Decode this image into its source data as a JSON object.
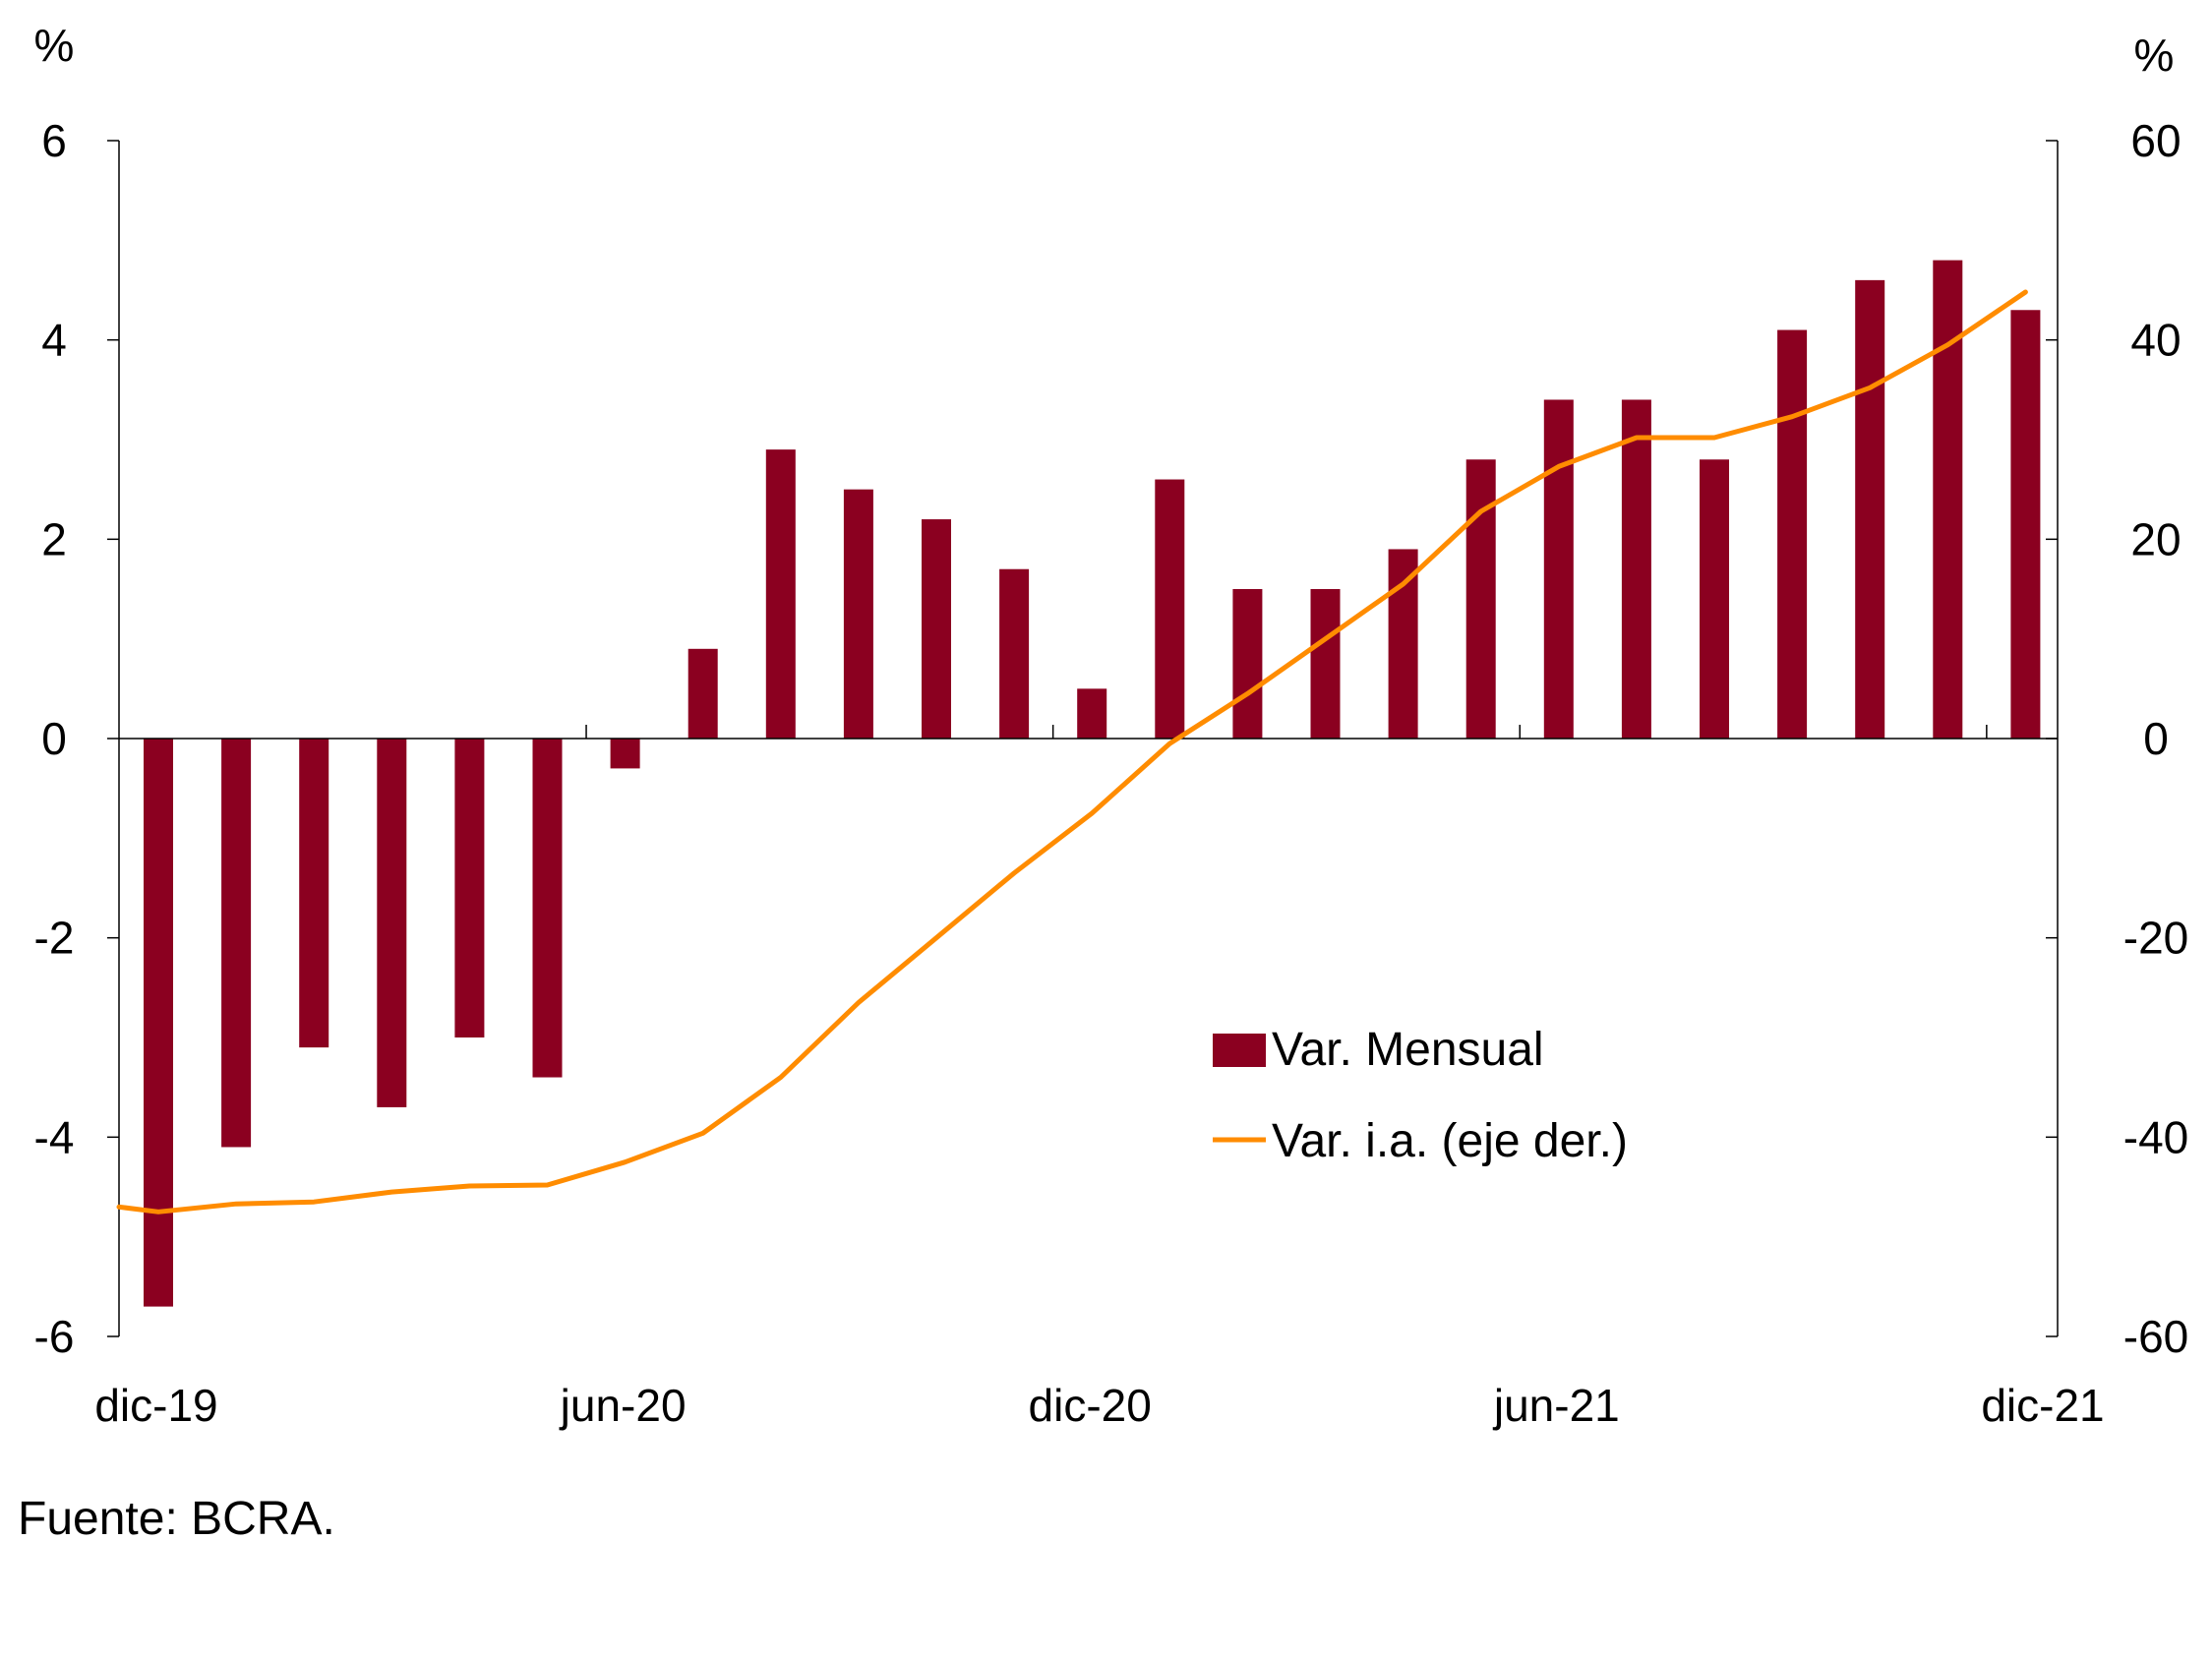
{
  "chart_data": {
    "type": "bar",
    "categories": [
      "dic-19",
      "ene-20",
      "feb-20",
      "mar-20",
      "abr-20",
      "may-20",
      "jun-20",
      "jul-20",
      "ago-20",
      "sep-20",
      "oct-20",
      "nov-20",
      "dic-20",
      "ene-21",
      "feb-21",
      "mar-21",
      "abr-21",
      "may-21",
      "jun-21",
      "jul-21",
      "ago-21",
      "sep-21",
      "oct-21",
      "nov-21",
      "dic-21"
    ],
    "x_tick_labels": [
      "dic-19",
      "jun-20",
      "dic-20",
      "jun-21",
      "dic-21"
    ],
    "series": [
      {
        "name": "Var. Mensual",
        "type": "bar",
        "axis": "left",
        "color": "#8B0020",
        "values": [
          -5.7,
          -4.1,
          -3.1,
          -3.7,
          -3.0,
          -3.4,
          -0.3,
          0.9,
          2.9,
          2.5,
          2.2,
          1.7,
          0.5,
          2.6,
          1.5,
          1.5,
          1.9,
          2.8,
          3.4,
          3.4,
          2.8,
          4.1,
          4.6,
          4.8,
          4.3
        ]
      },
      {
        "name": "Var. i.a. (eje der.)",
        "type": "line",
        "axis": "right",
        "color": "#FF8C00",
        "values": [
          -47.5,
          -46.7,
          -46.5,
          -45.5,
          -44.9,
          -44.8,
          -42.5,
          -39.6,
          -34,
          -26.5,
          -20,
          -13.5,
          -7.5,
          -0.5,
          4.5,
          10,
          15.5,
          22.8,
          27.3,
          30.2,
          30.2,
          32.3,
          35.2,
          39.5,
          44.8
        ]
      }
    ],
    "y_left": {
      "label": "%",
      "ylim": [
        -6,
        6
      ],
      "ticks": [
        "6",
        "4",
        "2",
        "0",
        "-2",
        "-4",
        "-6"
      ]
    },
    "y_right": {
      "label": "%",
      "ylim": [
        -60,
        60
      ],
      "ticks": [
        "60",
        "40",
        "20",
        "0",
        "-20",
        "-40",
        "-60"
      ]
    },
    "legend": {
      "position": "lower-right",
      "items": [
        "Var. Mensual",
        "Var. i.a. (eje der.)"
      ]
    },
    "grid": false,
    "source": "Fuente: BCRA."
  }
}
